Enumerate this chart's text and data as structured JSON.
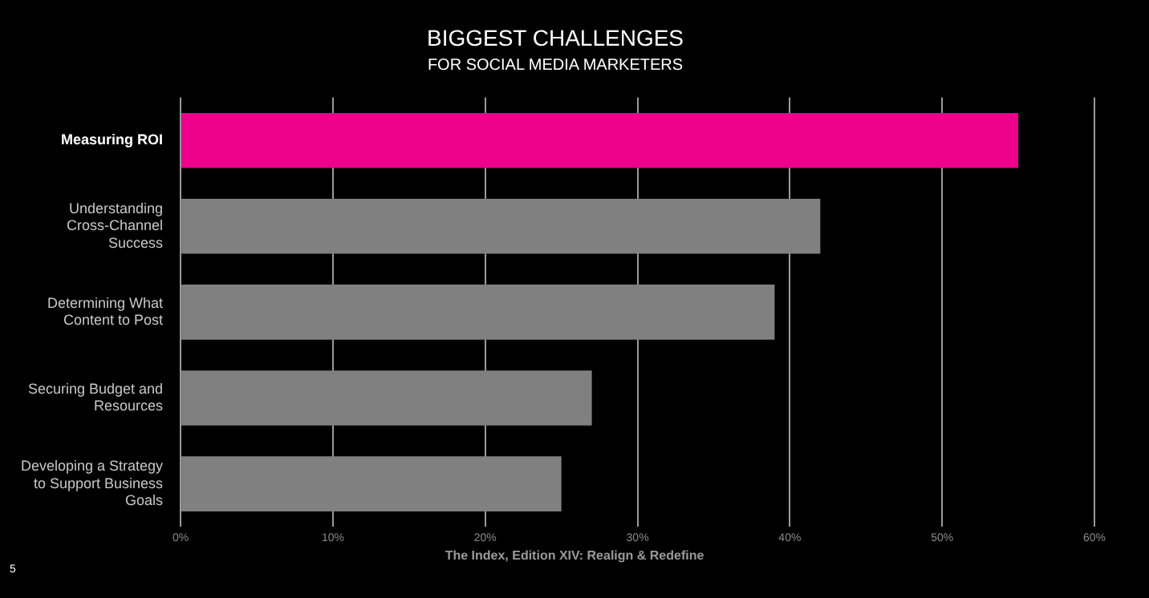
{
  "chart_data": {
    "type": "bar",
    "orientation": "horizontal",
    "title": "BIGGEST CHALLENGES",
    "subtitle": "FOR SOCIAL MEDIA MARKETERS",
    "categories": [
      "Measuring ROI",
      "Understanding Cross-Channel Success",
      "Determining What Content to Post",
      "Securing Budget and Resources",
      "Developing a Strategy to Support Business Goals"
    ],
    "values": [
      55,
      42,
      39,
      27,
      25
    ],
    "colors": [
      "#ec008c",
      "#808080",
      "#808080",
      "#808080",
      "#808080"
    ],
    "xlim": [
      0,
      60
    ],
    "xticks": [
      {
        "value": 0,
        "label": "0%"
      },
      {
        "value": 10,
        "label": "10%"
      },
      {
        "value": 20,
        "label": "20%"
      },
      {
        "value": 30,
        "label": "30%"
      },
      {
        "value": 40,
        "label": "40%"
      },
      {
        "value": 50,
        "label": "50%"
      },
      {
        "value": 60,
        "label": "60%"
      }
    ],
    "grid": "x",
    "annotations": [
      "The Index, Edition XIV: Realign & Redefine",
      "5"
    ]
  }
}
